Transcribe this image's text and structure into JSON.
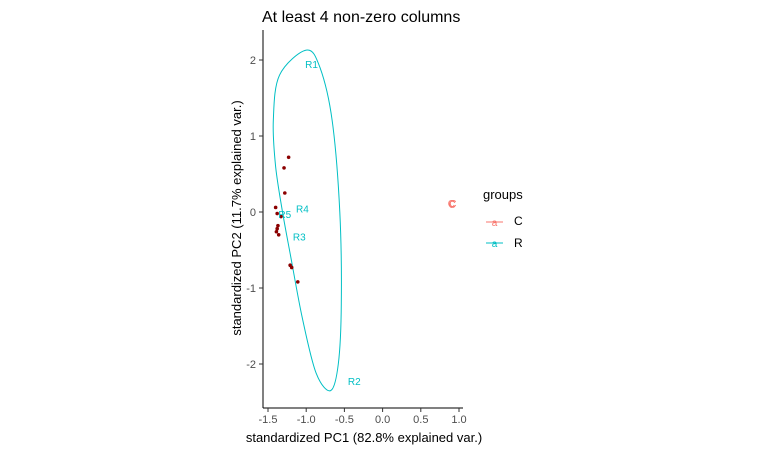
{
  "chart_data": {
    "type": "scatter",
    "title": "At least 4 non-zero columns",
    "xlabel": "standardized PC1 (82.8% explained var.)",
    "ylabel": "standardized PC2 (11.7% explained var.)",
    "xlim": [
      -1.5,
      1.0
    ],
    "ylim": [
      -2.5,
      2.3
    ],
    "x_ticks": [
      -1.5,
      -1.0,
      -0.5,
      0.0,
      0.5,
      1.0
    ],
    "x_tick_labels": [
      "-1.5",
      "-1.0",
      "-0.5",
      "0.0",
      "0.5",
      "1.0"
    ],
    "y_ticks": [
      -2,
      -1,
      0,
      1,
      2
    ],
    "y_tick_labels": [
      "-2",
      "-1",
      "0",
      "1",
      "2"
    ],
    "grid": false,
    "legend": {
      "title": "groups",
      "placement": "right",
      "entries": [
        {
          "label": "C",
          "color": "#F8766D"
        },
        {
          "label": "R",
          "color": "#00BFC4"
        }
      ]
    },
    "loading_points": [
      {
        "x": -1.23,
        "y": 0.72
      },
      {
        "x": -1.29,
        "y": 0.58
      },
      {
        "x": -1.28,
        "y": 0.25
      },
      {
        "x": -1.4,
        "y": 0.06
      },
      {
        "x": -1.38,
        "y": -0.02
      },
      {
        "x": -1.33,
        "y": -0.06
      },
      {
        "x": -1.37,
        "y": -0.18
      },
      {
        "x": -1.38,
        "y": -0.22
      },
      {
        "x": -1.39,
        "y": -0.26
      },
      {
        "x": -1.36,
        "y": -0.3
      },
      {
        "x": -1.21,
        "y": -0.7
      },
      {
        "x": -1.19,
        "y": -0.73
      },
      {
        "x": -1.11,
        "y": -0.92
      }
    ],
    "point_color": "#8B0000",
    "labels": [
      {
        "text": "R1",
        "x": -0.93,
        "y": 1.94,
        "group": "R"
      },
      {
        "text": "R2",
        "x": -0.37,
        "y": -2.23,
        "group": "R"
      },
      {
        "text": "R3",
        "x": -1.09,
        "y": -0.33,
        "group": "R"
      },
      {
        "text": "R4",
        "x": -1.05,
        "y": 0.04,
        "group": "R"
      },
      {
        "text": "R5",
        "x": -1.28,
        "y": -0.03,
        "group": "R"
      },
      {
        "text": "C",
        "x": 0.9,
        "y": 0.11,
        "group": "C"
      },
      {
        "text": "C",
        "x": 0.91,
        "y": 0.1,
        "group": "C"
      },
      {
        "text": "C",
        "x": 0.92,
        "y": 0.11,
        "group": "C"
      }
    ],
    "ellipse": {
      "group": "R",
      "color": "#00BFC4",
      "points": [
        [
          -1.0,
          2.13
        ],
        [
          -0.82,
          1.9
        ],
        [
          -0.66,
          1.2
        ],
        [
          -0.56,
          0.0
        ],
        [
          -0.54,
          -1.2
        ],
        [
          -0.58,
          -2.0
        ],
        [
          -0.68,
          -2.35
        ],
        [
          -0.87,
          -2.12
        ],
        [
          -1.05,
          -1.4
        ],
        [
          -1.2,
          -0.6
        ],
        [
          -1.31,
          0.0
        ],
        [
          -1.4,
          0.6
        ],
        [
          -1.43,
          1.2
        ],
        [
          -1.35,
          1.8
        ]
      ]
    }
  }
}
